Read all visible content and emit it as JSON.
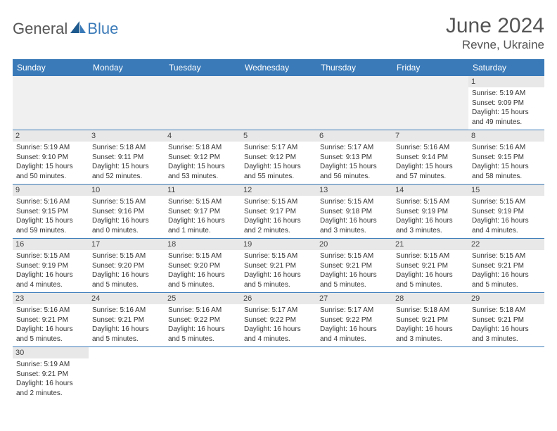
{
  "logo": {
    "part1": "General",
    "part2": "Blue"
  },
  "title": "June 2024",
  "location": "Revne, Ukraine",
  "colors": {
    "header_bg": "#3a7ab8",
    "header_fg": "#ffffff",
    "daynum_bg": "#e8e8e8",
    "rule": "#3a7ab8",
    "text": "#333333",
    "logo_gray": "#555555",
    "logo_blue": "#3a7ab8"
  },
  "day_headers": [
    "Sunday",
    "Monday",
    "Tuesday",
    "Wednesday",
    "Thursday",
    "Friday",
    "Saturday"
  ],
  "weeks": [
    [
      null,
      null,
      null,
      null,
      null,
      null,
      {
        "n": "1",
        "sr": "Sunrise: 5:19 AM",
        "ss": "Sunset: 9:09 PM",
        "dl": "Daylight: 15 hours and 49 minutes."
      }
    ],
    [
      {
        "n": "2",
        "sr": "Sunrise: 5:19 AM",
        "ss": "Sunset: 9:10 PM",
        "dl": "Daylight: 15 hours and 50 minutes."
      },
      {
        "n": "3",
        "sr": "Sunrise: 5:18 AM",
        "ss": "Sunset: 9:11 PM",
        "dl": "Daylight: 15 hours and 52 minutes."
      },
      {
        "n": "4",
        "sr": "Sunrise: 5:18 AM",
        "ss": "Sunset: 9:12 PM",
        "dl": "Daylight: 15 hours and 53 minutes."
      },
      {
        "n": "5",
        "sr": "Sunrise: 5:17 AM",
        "ss": "Sunset: 9:12 PM",
        "dl": "Daylight: 15 hours and 55 minutes."
      },
      {
        "n": "6",
        "sr": "Sunrise: 5:17 AM",
        "ss": "Sunset: 9:13 PM",
        "dl": "Daylight: 15 hours and 56 minutes."
      },
      {
        "n": "7",
        "sr": "Sunrise: 5:16 AM",
        "ss": "Sunset: 9:14 PM",
        "dl": "Daylight: 15 hours and 57 minutes."
      },
      {
        "n": "8",
        "sr": "Sunrise: 5:16 AM",
        "ss": "Sunset: 9:15 PM",
        "dl": "Daylight: 15 hours and 58 minutes."
      }
    ],
    [
      {
        "n": "9",
        "sr": "Sunrise: 5:16 AM",
        "ss": "Sunset: 9:15 PM",
        "dl": "Daylight: 15 hours and 59 minutes."
      },
      {
        "n": "10",
        "sr": "Sunrise: 5:15 AM",
        "ss": "Sunset: 9:16 PM",
        "dl": "Daylight: 16 hours and 0 minutes."
      },
      {
        "n": "11",
        "sr": "Sunrise: 5:15 AM",
        "ss": "Sunset: 9:17 PM",
        "dl": "Daylight: 16 hours and 1 minute."
      },
      {
        "n": "12",
        "sr": "Sunrise: 5:15 AM",
        "ss": "Sunset: 9:17 PM",
        "dl": "Daylight: 16 hours and 2 minutes."
      },
      {
        "n": "13",
        "sr": "Sunrise: 5:15 AM",
        "ss": "Sunset: 9:18 PM",
        "dl": "Daylight: 16 hours and 3 minutes."
      },
      {
        "n": "14",
        "sr": "Sunrise: 5:15 AM",
        "ss": "Sunset: 9:19 PM",
        "dl": "Daylight: 16 hours and 3 minutes."
      },
      {
        "n": "15",
        "sr": "Sunrise: 5:15 AM",
        "ss": "Sunset: 9:19 PM",
        "dl": "Daylight: 16 hours and 4 minutes."
      }
    ],
    [
      {
        "n": "16",
        "sr": "Sunrise: 5:15 AM",
        "ss": "Sunset: 9:19 PM",
        "dl": "Daylight: 16 hours and 4 minutes."
      },
      {
        "n": "17",
        "sr": "Sunrise: 5:15 AM",
        "ss": "Sunset: 9:20 PM",
        "dl": "Daylight: 16 hours and 5 minutes."
      },
      {
        "n": "18",
        "sr": "Sunrise: 5:15 AM",
        "ss": "Sunset: 9:20 PM",
        "dl": "Daylight: 16 hours and 5 minutes."
      },
      {
        "n": "19",
        "sr": "Sunrise: 5:15 AM",
        "ss": "Sunset: 9:21 PM",
        "dl": "Daylight: 16 hours and 5 minutes."
      },
      {
        "n": "20",
        "sr": "Sunrise: 5:15 AM",
        "ss": "Sunset: 9:21 PM",
        "dl": "Daylight: 16 hours and 5 minutes."
      },
      {
        "n": "21",
        "sr": "Sunrise: 5:15 AM",
        "ss": "Sunset: 9:21 PM",
        "dl": "Daylight: 16 hours and 5 minutes."
      },
      {
        "n": "22",
        "sr": "Sunrise: 5:15 AM",
        "ss": "Sunset: 9:21 PM",
        "dl": "Daylight: 16 hours and 5 minutes."
      }
    ],
    [
      {
        "n": "23",
        "sr": "Sunrise: 5:16 AM",
        "ss": "Sunset: 9:21 PM",
        "dl": "Daylight: 16 hours and 5 minutes."
      },
      {
        "n": "24",
        "sr": "Sunrise: 5:16 AM",
        "ss": "Sunset: 9:21 PM",
        "dl": "Daylight: 16 hours and 5 minutes."
      },
      {
        "n": "25",
        "sr": "Sunrise: 5:16 AM",
        "ss": "Sunset: 9:22 PM",
        "dl": "Daylight: 16 hours and 5 minutes."
      },
      {
        "n": "26",
        "sr": "Sunrise: 5:17 AM",
        "ss": "Sunset: 9:22 PM",
        "dl": "Daylight: 16 hours and 4 minutes."
      },
      {
        "n": "27",
        "sr": "Sunrise: 5:17 AM",
        "ss": "Sunset: 9:22 PM",
        "dl": "Daylight: 16 hours and 4 minutes."
      },
      {
        "n": "28",
        "sr": "Sunrise: 5:18 AM",
        "ss": "Sunset: 9:21 PM",
        "dl": "Daylight: 16 hours and 3 minutes."
      },
      {
        "n": "29",
        "sr": "Sunrise: 5:18 AM",
        "ss": "Sunset: 9:21 PM",
        "dl": "Daylight: 16 hours and 3 minutes."
      }
    ],
    [
      {
        "n": "30",
        "sr": "Sunrise: 5:19 AM",
        "ss": "Sunset: 9:21 PM",
        "dl": "Daylight: 16 hours and 2 minutes."
      },
      null,
      null,
      null,
      null,
      null,
      null
    ]
  ]
}
